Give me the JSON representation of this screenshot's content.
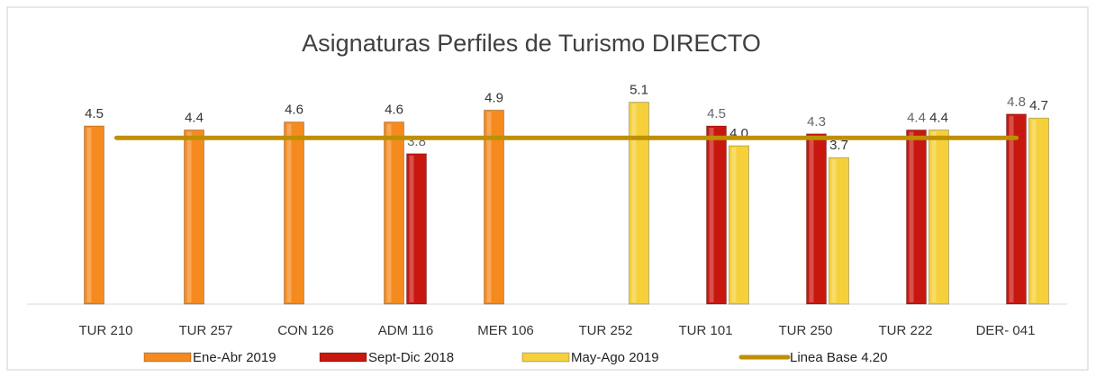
{
  "chart_data": {
    "type": "bar",
    "title": "Asignaturas Perfiles de Turismo DIRECTO",
    "categories": [
      "TUR 210",
      "TUR 257",
      "CON 126",
      "ADM 116",
      "MER 106",
      "TUR 252",
      "TUR 101",
      "TUR 250",
      "TUR 222",
      "DER- 041"
    ],
    "ylim": [
      0,
      5.5
    ],
    "series": [
      {
        "name": "Ene-Abr 2019",
        "color": "#f58a1f",
        "values": [
          4.5,
          4.4,
          4.6,
          4.6,
          4.9,
          null,
          null,
          null,
          null,
          null
        ],
        "value_labels": [
          "4.5",
          "4.4",
          "4.6",
          "4.6",
          "4.9",
          null,
          null,
          null,
          null,
          null
        ]
      },
      {
        "name": "Sept-Dic  2018",
        "color": "#c8170f",
        "values": [
          null,
          null,
          null,
          3.8,
          null,
          null,
          4.5,
          4.3,
          4.4,
          4.8
        ],
        "value_labels": [
          null,
          null,
          null,
          "3.8",
          null,
          null,
          "4.5",
          "4.3",
          "4.4",
          "4.8"
        ]
      },
      {
        "name": "May-Ago 2019",
        "color": "#f5d03a",
        "values": [
          null,
          null,
          null,
          null,
          null,
          5.1,
          4.0,
          3.7,
          4.4,
          4.7
        ],
        "value_labels": [
          null,
          null,
          null,
          null,
          null,
          "5.1",
          "4.0",
          "3.7",
          "4.4",
          "4.7"
        ]
      },
      {
        "name": "Linea Base 4.20",
        "type": "line",
        "color": "#bf8f00",
        "values": [
          4.2,
          4.2,
          4.2,
          4.2,
          4.2,
          4.2,
          4.2,
          4.2,
          4.2,
          4.2
        ]
      }
    ]
  }
}
